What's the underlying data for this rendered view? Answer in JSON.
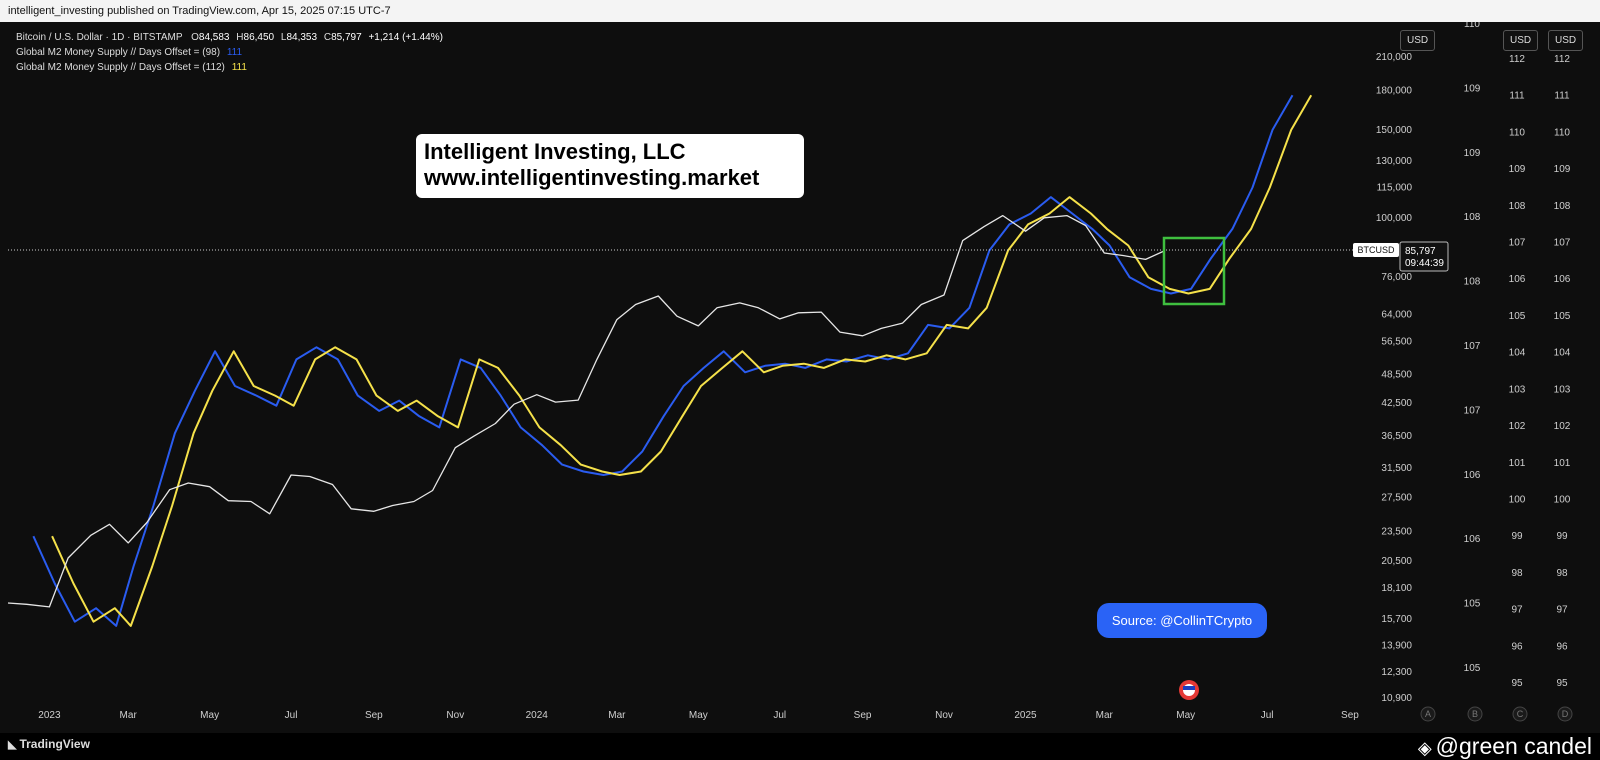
{
  "header": {
    "published": "intelligent_investing published on TradingView.com, Apr 15, 2025 07:15 UTC-7"
  },
  "legend": {
    "symbol_prefix": "Bitcoin / U.S. Dollar · 1D · BITSTAMP",
    "ohlc": {
      "o_label": "O",
      "o_value": "84,583",
      "h_label": "H",
      "h_value": "86,450",
      "l_label": "L",
      "l_value": "84,353",
      "c_label": "C",
      "c_value": "85,797",
      "change": "+1,214 (+1.44%)"
    },
    "series_1": "Global M2 Money Supply // Days Offset = (98)",
    "series_1_value": "111",
    "series_2": "Global M2 Money Supply // Days Offset = (112)",
    "series_2_value": "111"
  },
  "overlays": {
    "brand_line_1": "Intelligent Investing, LLC",
    "brand_line_2": "www.intelligentinvesting.market",
    "source": "Source: @CollinTCrypto"
  },
  "price_tag": {
    "symbol": "BTCUSD",
    "price": "85,797",
    "countdown": "09:44:39"
  },
  "axis_buttons": {
    "usd_1": "USD",
    "usd_2": "USD",
    "usd_3": "USD"
  },
  "scale_letters": [
    "A",
    "B",
    "C",
    "D"
  ],
  "footer": {
    "logo": "TradingView",
    "watermark": "@green candel"
  },
  "colors": {
    "btc": "#e6e6e6",
    "m2_98": "#2a5cf0",
    "m2_112": "#f5e14a",
    "highlight_box": "#3fbf3f",
    "background": "#0e0e0e"
  },
  "chart_data": {
    "type": "line",
    "y_scale": "log",
    "x_tick_labels": [
      "2023",
      "Mar",
      "May",
      "Jul",
      "Sep",
      "Nov",
      "2024",
      "Mar",
      "May",
      "Jul",
      "Sep",
      "Nov",
      "2025",
      "Mar",
      "May",
      "Jul",
      "Sep"
    ],
    "y_ticks": [
      "210,000",
      "180,000",
      "150,000",
      "130,000",
      "115,000",
      "100,000",
      "76,000",
      "64,000",
      "56,500",
      "48,500",
      "42,500",
      "36,500",
      "31,500",
      "27,500",
      "23,500",
      "20,500",
      "18,100",
      "15,700",
      "13,900",
      "12,300",
      "10,900"
    ],
    "y_tick_values": [
      210000,
      180000,
      150000,
      130000,
      115000,
      100000,
      76000,
      64000,
      56500,
      48500,
      42500,
      36500,
      31500,
      27500,
      23500,
      20500,
      18100,
      15700,
      13900,
      12300,
      10900
    ],
    "ylim": [
      10900,
      210000
    ],
    "m2_axis_1_ticks": [
      "110",
      "109",
      "109",
      "108",
      "108",
      "107",
      "107",
      "106",
      "106",
      "105",
      "105"
    ],
    "m2_axis_2_ticks": [
      "112",
      "111",
      "110",
      "109",
      "108",
      "107",
      "106",
      "105",
      "104",
      "103",
      "102",
      "101",
      "100",
      "99",
      "98",
      "97",
      "96",
      "95"
    ],
    "m2_axis_3_ticks": [
      "112",
      "111",
      "110",
      "109",
      "108",
      "107",
      "106",
      "105",
      "104",
      "103",
      "102",
      "101",
      "100",
      "99",
      "98",
      "97",
      "96",
      "95"
    ],
    "series": [
      {
        "name": "BTCUSD",
        "x": [
          "2022-12-01",
          "2022-12-15",
          "2023-01-01",
          "2023-01-15",
          "2023-02-01",
          "2023-02-15",
          "2023-03-01",
          "2023-03-15",
          "2023-04-01",
          "2023-04-15",
          "2023-05-01",
          "2023-05-15",
          "2023-06-01",
          "2023-06-15",
          "2023-07-01",
          "2023-07-15",
          "2023-08-01",
          "2023-08-15",
          "2023-09-01",
          "2023-09-15",
          "2023-10-01",
          "2023-10-15",
          "2023-11-01",
          "2023-11-15",
          "2023-12-01",
          "2023-12-15",
          "2024-01-01",
          "2024-01-15",
          "2024-02-01",
          "2024-02-15",
          "2024-03-01",
          "2024-03-15",
          "2024-04-01",
          "2024-04-15",
          "2024-05-01",
          "2024-05-15",
          "2024-06-01",
          "2024-06-15",
          "2024-07-01",
          "2024-07-15",
          "2024-08-01",
          "2024-08-15",
          "2024-09-01",
          "2024-09-15",
          "2024-10-01",
          "2024-10-15",
          "2024-11-01",
          "2024-11-15",
          "2024-12-01",
          "2024-12-15",
          "2025-01-01",
          "2025-01-15",
          "2025-02-01",
          "2025-02-15",
          "2025-03-01",
          "2025-03-15",
          "2025-04-01",
          "2025-04-15"
        ],
        "values": [
          16900,
          16800,
          16600,
          20800,
          23100,
          24300,
          22300,
          24500,
          28500,
          29400,
          28900,
          27100,
          27000,
          25500,
          30500,
          30300,
          29200,
          26100,
          25800,
          26500,
          27000,
          28400,
          34600,
          36500,
          38700,
          42300,
          44200,
          42700,
          43100,
          52000,
          62500,
          67000,
          69700,
          63500,
          60700,
          66000,
          67500,
          66000,
          62700,
          64500,
          64700,
          59000,
          58000,
          60000,
          61500,
          67000,
          70000,
          90000,
          96000,
          101000,
          94000,
          100000,
          101000,
          96500,
          85000,
          84000,
          82500,
          85800
        ]
      },
      {
        "name": "Global M2 Money Supply // Days Offset = (98)",
        "x": [
          "2022-12-20",
          "2023-01-05",
          "2023-01-20",
          "2023-02-05",
          "2023-02-20",
          "2023-03-05",
          "2023-03-20",
          "2023-04-05",
          "2023-04-20",
          "2023-05-05",
          "2023-05-20",
          "2023-06-05",
          "2023-06-20",
          "2023-07-05",
          "2023-07-20",
          "2023-08-05",
          "2023-08-20",
          "2023-09-05",
          "2023-09-20",
          "2023-10-05",
          "2023-10-20",
          "2023-11-05",
          "2023-11-20",
          "2023-12-05",
          "2023-12-20",
          "2024-01-05",
          "2024-01-20",
          "2024-02-05",
          "2024-02-20",
          "2024-03-05",
          "2024-03-20",
          "2024-04-05",
          "2024-04-20",
          "2024-05-05",
          "2024-05-20",
          "2024-06-05",
          "2024-06-20",
          "2024-07-05",
          "2024-07-20",
          "2024-08-05",
          "2024-08-20",
          "2024-09-05",
          "2024-09-20",
          "2024-10-05",
          "2024-10-20",
          "2024-11-05",
          "2024-11-20",
          "2024-12-05",
          "2024-12-20",
          "2025-01-05",
          "2025-01-20",
          "2025-02-05",
          "2025-02-20",
          "2025-03-05",
          "2025-03-20",
          "2025-04-05",
          "2025-04-20",
          "2025-05-05",
          "2025-05-20",
          "2025-06-05",
          "2025-06-20",
          "2025-07-05",
          "2025-07-20"
        ],
        "values": [
          23000,
          18500,
          15500,
          16500,
          15200,
          20000,
          26500,
          37000,
          45000,
          54000,
          46000,
          44000,
          42000,
          52000,
          55000,
          52000,
          44000,
          41000,
          43000,
          40000,
          38000,
          52000,
          50000,
          44000,
          38000,
          35000,
          32000,
          31000,
          30500,
          31000,
          34000,
          40000,
          46000,
          50000,
          54000,
          49000,
          50500,
          51000,
          50000,
          52000,
          51500,
          53000,
          52000,
          53500,
          61000,
          60000,
          66000,
          86000,
          97000,
          102000,
          110000,
          102000,
          95000,
          88000,
          76000,
          72000,
          70500,
          72000,
          83000,
          95000,
          115000,
          150000,
          176000
        ]
      },
      {
        "name": "Global M2 Money Supply // Days Offset = (112)",
        "x": [
          "2023-01-03",
          "2023-01-19",
          "2023-02-03",
          "2023-02-19",
          "2023-03-03",
          "2023-03-19",
          "2023-04-03",
          "2023-04-19",
          "2023-05-03",
          "2023-05-19",
          "2023-06-03",
          "2023-06-19",
          "2023-07-03",
          "2023-07-19",
          "2023-08-03",
          "2023-08-19",
          "2023-09-03",
          "2023-09-19",
          "2023-10-03",
          "2023-10-19",
          "2023-11-03",
          "2023-11-19",
          "2023-12-03",
          "2023-12-19",
          "2024-01-03",
          "2024-01-19",
          "2024-02-03",
          "2024-02-19",
          "2024-03-03",
          "2024-03-19",
          "2024-04-03",
          "2024-04-19",
          "2024-05-03",
          "2024-05-19",
          "2024-06-03",
          "2024-06-19",
          "2024-07-03",
          "2024-07-19",
          "2024-08-03",
          "2024-08-19",
          "2024-09-03",
          "2024-09-19",
          "2024-10-03",
          "2024-10-19",
          "2024-11-03",
          "2024-11-19",
          "2024-12-03",
          "2024-12-19",
          "2025-01-03",
          "2025-01-19",
          "2025-02-03",
          "2025-02-19",
          "2025-03-03",
          "2025-03-19",
          "2025-04-03",
          "2025-04-19",
          "2025-05-03",
          "2025-05-19",
          "2025-06-03",
          "2025-06-19",
          "2025-07-03",
          "2025-07-19",
          "2025-08-03"
        ],
        "values": [
          23000,
          18500,
          15500,
          16500,
          15200,
          20000,
          26500,
          37000,
          45000,
          54000,
          46000,
          44000,
          42000,
          52000,
          55000,
          52000,
          44000,
          41000,
          43000,
          40000,
          38000,
          52000,
          50000,
          44000,
          38000,
          35000,
          32000,
          31000,
          30500,
          31000,
          34000,
          40000,
          46000,
          50000,
          54000,
          49000,
          50500,
          51000,
          50000,
          52000,
          51500,
          53000,
          52000,
          53500,
          61000,
          60000,
          66000,
          86000,
          97000,
          102000,
          110000,
          102000,
          95000,
          88000,
          76000,
          72000,
          70500,
          72000,
          83000,
          95000,
          115000,
          150000,
          176000
        ]
      }
    ]
  }
}
